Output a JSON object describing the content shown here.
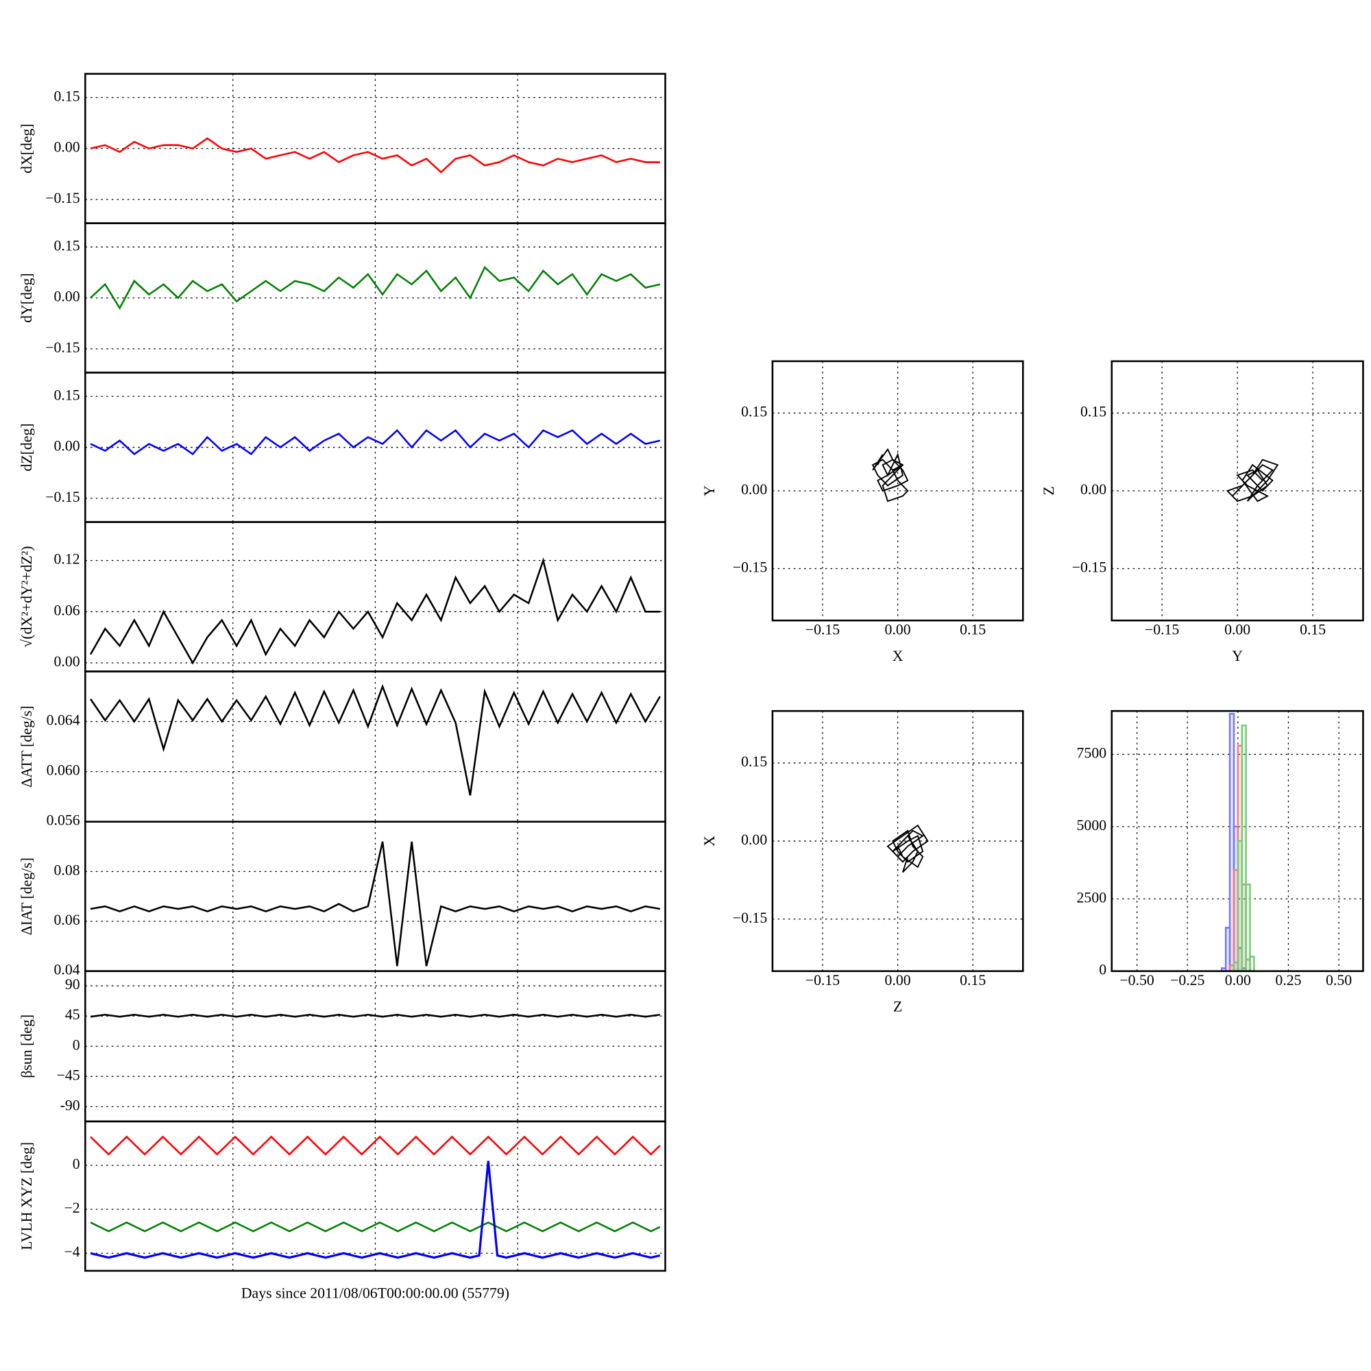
{
  "chart_data": [
    {
      "type": "line",
      "ylabel": "dX[deg]",
      "ylim": [
        -0.22,
        0.22
      ],
      "yticks": [
        {
          "value": -0.15,
          "label": "−0.15"
        },
        {
          "value": 0,
          "label": "0.00"
        },
        0.15
      ],
      "series": [
        {
          "color": "#ff0000",
          "values": [
            0.0,
            0.01,
            -0.01,
            0.02,
            0.0,
            0.01,
            0.01,
            0.0,
            0.03,
            0.0,
            -0.01,
            0.0,
            -0.03,
            -0.02,
            -0.01,
            -0.03,
            -0.01,
            -0.04,
            -0.02,
            -0.01,
            -0.03,
            -0.02,
            -0.05,
            -0.03,
            -0.07,
            -0.03,
            -0.02,
            -0.05,
            -0.04,
            -0.02,
            -0.04,
            -0.05,
            -0.03,
            -0.04,
            -0.03,
            -0.02,
            -0.04,
            -0.03,
            -0.04,
            -0.04
          ]
        }
      ]
    },
    {
      "type": "line",
      "ylabel": "dY[deg]",
      "ylim": [
        -0.22,
        0.22
      ],
      "yticks": [
        {
          "value": -0.15,
          "label": "−0.15"
        },
        {
          "value": 0,
          "label": "0.00"
        },
        0.15
      ],
      "series": [
        {
          "color": "#008000",
          "values": [
            0.0,
            0.04,
            -0.03,
            0.05,
            0.01,
            0.04,
            0.0,
            0.05,
            0.02,
            0.04,
            -0.01,
            0.02,
            0.05,
            0.02,
            0.05,
            0.04,
            0.02,
            0.06,
            0.03,
            0.07,
            0.01,
            0.07,
            0.04,
            0.08,
            0.02,
            0.06,
            0.0,
            0.09,
            0.05,
            0.06,
            0.02,
            0.08,
            0.04,
            0.07,
            0.01,
            0.07,
            0.05,
            0.07,
            0.03,
            0.04
          ]
        }
      ]
    },
    {
      "type": "line",
      "ylabel": "dZ[deg]",
      "ylim": [
        -0.22,
        0.22
      ],
      "yticks": [
        {
          "value": -0.15,
          "label": "−0.15"
        },
        {
          "value": 0,
          "label": "0.00"
        },
        0.15
      ],
      "series": [
        {
          "color": "#0000ff",
          "values": [
            0.01,
            -0.01,
            0.02,
            -0.02,
            0.01,
            -0.01,
            0.01,
            -0.02,
            0.03,
            -0.01,
            0.01,
            -0.02,
            0.03,
            0.0,
            0.03,
            -0.01,
            0.02,
            0.04,
            0.0,
            0.03,
            0.01,
            0.05,
            0.0,
            0.05,
            0.02,
            0.05,
            0.0,
            0.04,
            0.02,
            0.04,
            0.0,
            0.05,
            0.03,
            0.05,
            0.01,
            0.04,
            0.01,
            0.04,
            0.01,
            0.02
          ]
        }
      ]
    },
    {
      "type": "line",
      "ylabel": "√(dX²+dY²+dZ²)",
      "ylim": [
        -0.01,
        0.165
      ],
      "yticks": [
        {
          "value": 0,
          "label": "0.00"
        },
        0.06,
        0.12
      ],
      "series": [
        {
          "color": "#000000",
          "values": [
            0.01,
            0.04,
            0.02,
            0.05,
            0.02,
            0.06,
            0.03,
            0.0,
            0.03,
            0.05,
            0.02,
            0.05,
            0.01,
            0.04,
            0.02,
            0.05,
            0.03,
            0.06,
            0.04,
            0.06,
            0.03,
            0.07,
            0.05,
            0.08,
            0.05,
            0.1,
            0.07,
            0.09,
            0.06,
            0.08,
            0.07,
            0.12,
            0.05,
            0.08,
            0.06,
            0.09,
            0.06,
            0.1,
            0.06,
            0.06
          ]
        }
      ]
    },
    {
      "type": "line",
      "ylabel": "ΔATT [deg/s]",
      "ylim": [
        0.056,
        0.068
      ],
      "yticks": [
        0.056,
        {
          "value": 0.06,
          "label": "0.060"
        },
        0.064
      ],
      "series": [
        {
          "color": "#000000",
          "values": [
            0.0658,
            0.0641,
            0.0657,
            0.064,
            0.0658,
            0.0618,
            0.0657,
            0.0641,
            0.0658,
            0.064,
            0.0657,
            0.0641,
            0.066,
            0.0638,
            0.0663,
            0.0637,
            0.0664,
            0.0639,
            0.0665,
            0.0636,
            0.0668,
            0.0637,
            0.0666,
            0.0638,
            0.0665,
            0.0639,
            0.0581,
            0.0664,
            0.0636,
            0.0663,
            0.0638,
            0.0664,
            0.0639,
            0.0662,
            0.064,
            0.0663,
            0.0639,
            0.0662,
            0.064,
            0.066
          ]
        }
      ]
    },
    {
      "type": "line",
      "ylabel": "ΔIAT [deg/s]",
      "ylim": [
        0.04,
        0.1
      ],
      "yticks": [
        0.04,
        0.06,
        0.08
      ],
      "series": [
        {
          "color": "#000000",
          "values": [
            0.065,
            0.066,
            0.064,
            0.066,
            0.064,
            0.066,
            0.065,
            0.066,
            0.064,
            0.066,
            0.065,
            0.066,
            0.064,
            0.066,
            0.065,
            0.066,
            0.064,
            0.067,
            0.064,
            0.066,
            0.092,
            0.042,
            0.092,
            0.042,
            0.066,
            0.064,
            0.066,
            0.065,
            0.066,
            0.064,
            0.066,
            0.065,
            0.066,
            0.064,
            0.066,
            0.065,
            0.066,
            0.064,
            0.066,
            0.065
          ]
        }
      ]
    },
    {
      "type": "line",
      "ylabel": "βsun [deg]",
      "ylim": [
        -112,
        112
      ],
      "yticks": [
        -90,
        {
          "value": -45,
          "label": "−45"
        },
        0,
        45,
        90
      ],
      "series": [
        {
          "color": "#000000",
          "values": [
            44,
            47,
            44,
            47,
            44,
            47,
            44,
            47,
            44,
            47,
            44,
            47,
            44,
            47,
            44,
            47,
            44,
            47,
            44,
            47,
            44,
            47,
            44,
            47,
            44,
            47,
            44,
            47,
            44,
            47,
            44,
            47,
            44,
            47,
            44,
            47,
            44,
            47,
            44,
            47
          ]
        }
      ]
    },
    {
      "type": "line",
      "ylabel": "LVLH XYZ [deg]",
      "xlabel": "Days since 2011/08/06T00:00:00.00 (55779)",
      "ylim": [
        -4.8,
        2
      ],
      "yticks": [
        {
          "value": -4,
          "label": "−4"
        },
        {
          "value": -2,
          "label": "−2"
        },
        0
      ],
      "series": [
        {
          "color": "#ff0000",
          "values": [
            1.3,
            0.9,
            0.5,
            0.9,
            1.3,
            0.9,
            0.5,
            0.9,
            1.3,
            0.9,
            0.5,
            0.9,
            1.3,
            0.9,
            0.5,
            0.9,
            1.3,
            0.9,
            0.5,
            0.9,
            1.3,
            0.9,
            0.5,
            0.9,
            1.3,
            0.9,
            0.5,
            0.9,
            1.3,
            0.9,
            0.5,
            0.9,
            1.3,
            0.9,
            0.5,
            0.9,
            1.3,
            0.9,
            0.5,
            0.9,
            1.3,
            0.9,
            0.5,
            0.9,
            1.3,
            0.9,
            0.5,
            0.9,
            1.3,
            0.9,
            0.5,
            0.9,
            1.3,
            0.9,
            0.5,
            0.9,
            1.3,
            0.9,
            0.5,
            0.9,
            1.3,
            0.9,
            0.5,
            0.9
          ]
        },
        {
          "color": "#008000",
          "values": [
            -2.6,
            -2.8,
            -3.0,
            -2.8,
            -2.6,
            -2.8,
            -3.0,
            -2.8,
            -2.6,
            -2.8,
            -3.0,
            -2.8,
            -2.6,
            -2.8,
            -3.0,
            -2.8,
            -2.6,
            -2.8,
            -3.0,
            -2.8,
            -2.6,
            -2.8,
            -3.0,
            -2.8,
            -2.6,
            -2.8,
            -3.0,
            -2.8,
            -2.6,
            -2.8,
            -3.0,
            -2.8,
            -2.6,
            -2.8,
            -3.0,
            -2.8,
            -2.6,
            -2.8,
            -3.0,
            -2.8,
            -2.6,
            -2.8,
            -3.0,
            -2.8,
            -2.6,
            -2.8,
            -3.0,
            -2.8,
            -2.6,
            -2.8,
            -3.0,
            -2.8,
            -2.6,
            -2.8,
            -3.0,
            -2.8,
            -2.6,
            -2.8,
            -3.0,
            -2.8,
            -2.6,
            -2.8,
            -3.0,
            -2.8
          ]
        },
        {
          "color": "#0000ff",
          "values": [
            -4.0,
            -4.1,
            -4.2,
            -4.1,
            -4.0,
            -4.1,
            -4.2,
            -4.1,
            -4.0,
            -4.1,
            -4.2,
            -4.1,
            -4.0,
            -4.1,
            -4.2,
            -4.1,
            -4.0,
            -4.1,
            -4.2,
            -4.1,
            -4.0,
            -4.1,
            -4.2,
            -4.1,
            -4.0,
            -4.1,
            -4.2,
            -4.1,
            -4.0,
            -4.1,
            -4.2,
            -4.1,
            -4.0,
            -4.1,
            -4.2,
            -4.1,
            -4.0,
            -4.1,
            -4.2,
            -4.1,
            -4.0,
            -4.1,
            -4.2,
            -4.1,
            0.2,
            -4.1,
            -4.2,
            -4.1,
            -4.0,
            -4.1,
            -4.2,
            -4.1,
            -4.0,
            -4.1,
            -4.2,
            -4.1,
            -4.0,
            -4.1,
            -4.2,
            -4.1,
            -4.0,
            -4.1,
            -4.2,
            -4.1
          ]
        }
      ]
    },
    {
      "type": "scatter",
      "xlabel": "X",
      "ylabel": "Y",
      "color": "#000000",
      "xlim": [
        -0.25,
        0.25
      ],
      "ylim": [
        -0.25,
        0.25
      ],
      "xticks": [
        {
          "value": -0.15,
          "label": "−0.15"
        },
        {
          "value": 0,
          "label": "0.00"
        },
        0.15
      ],
      "yticks": [
        {
          "value": -0.15,
          "label": "−0.15"
        },
        {
          "value": 0,
          "label": "0.00"
        },
        0.15
      ],
      "x": [
        -0.04,
        -0.03,
        -0.05,
        -0.02,
        -0.01,
        0.01,
        -0.02,
        -0.04,
        -0.03,
        0.0,
        0.02,
        0.01,
        -0.01,
        -0.03,
        -0.02,
        0.0,
        0.01,
        -0.02,
        -0.04,
        -0.05,
        -0.03,
        -0.01,
        0.0,
        0.02,
        0.01,
        -0.02,
        -0.03,
        -0.01,
        0.01,
        -0.01
      ],
      "y": [
        0.05,
        0.07,
        0.04,
        0.08,
        0.06,
        0.05,
        0.03,
        0.02,
        0.0,
        0.01,
        0.02,
        0.04,
        0.06,
        0.05,
        0.03,
        0.07,
        0.03,
        0.01,
        0.03,
        0.05,
        0.06,
        0.04,
        0.02,
        0.0,
        -0.01,
        -0.02,
        0.01,
        0.03,
        0.05,
        0.04
      ]
    },
    {
      "type": "scatter",
      "xlabel": "Y",
      "ylabel": "Z",
      "color": "#000000",
      "xlim": [
        -0.25,
        0.25
      ],
      "ylim": [
        -0.25,
        0.25
      ],
      "xticks": [
        {
          "value": -0.15,
          "label": "−0.15"
        },
        {
          "value": 0,
          "label": "0.00"
        },
        0.15
      ],
      "yticks": [
        {
          "value": -0.15,
          "label": "−0.15"
        },
        {
          "value": 0,
          "label": "0.00"
        },
        0.15
      ],
      "x": [
        0.0,
        0.02,
        -0.01,
        0.03,
        0.05,
        0.07,
        0.04,
        0.02,
        0.06,
        0.08,
        0.05,
        0.03,
        0.01,
        -0.02,
        0.0,
        0.03,
        0.06,
        0.04,
        0.02,
        0.05,
        0.07,
        0.03,
        0.01,
        0.04,
        0.06,
        0.02,
        0.0,
        0.03,
        0.05,
        0.04
      ],
      "y": [
        0.0,
        0.02,
        -0.01,
        0.03,
        0.05,
        0.04,
        0.01,
        -0.02,
        0.02,
        0.05,
        0.06,
        0.03,
        0.01,
        0.0,
        -0.02,
        -0.01,
        0.01,
        0.04,
        0.03,
        0.0,
        0.02,
        0.05,
        0.02,
        -0.02,
        -0.01,
        0.01,
        0.03,
        0.04,
        0.02,
        0.01
      ]
    },
    {
      "type": "scatter",
      "xlabel": "Z",
      "ylabel": "X",
      "color": "#000000",
      "xlim": [
        -0.25,
        0.25
      ],
      "ylim": [
        -0.25,
        0.25
      ],
      "xticks": [
        {
          "value": -0.15,
          "label": "−0.15"
        },
        {
          "value": 0,
          "label": "0.00"
        },
        0.15
      ],
      "yticks": [
        {
          "value": -0.15,
          "label": "−0.15"
        },
        {
          "value": 0,
          "label": "0.00"
        },
        0.15
      ],
      "x": [
        -0.01,
        0.01,
        0.03,
        0.05,
        0.02,
        0.0,
        -0.02,
        0.01,
        0.04,
        0.06,
        0.03,
        0.01,
        -0.01,
        0.02,
        0.04,
        0.05,
        0.02,
        0.0,
        -0.01,
        0.02,
        0.03,
        0.05,
        0.04,
        0.01,
        0.0,
        0.02,
        0.04,
        0.03,
        0.01,
        0.02
      ],
      "y": [
        -0.02,
        0.0,
        0.02,
        0.01,
        -0.01,
        -0.03,
        -0.01,
        0.01,
        0.03,
        0.0,
        -0.02,
        -0.04,
        -0.02,
        0.0,
        0.01,
        -0.02,
        -0.04,
        -0.02,
        0.0,
        0.02,
        -0.01,
        -0.03,
        -0.05,
        -0.03,
        -0.01,
        0.01,
        -0.02,
        -0.04,
        -0.06,
        -0.03
      ]
    },
    {
      "type": "histogram",
      "xlim": [
        -0.625,
        0.62
      ],
      "ylim": [
        0,
        9000
      ],
      "xticks": [
        {
          "value": -0.5,
          "label": "−0.50"
        },
        {
          "value": -0.25,
          "label": "−0.25"
        },
        {
          "value": 0,
          "label": "0.00"
        },
        0.25,
        {
          "value": 0.5,
          "label": "0.50"
        }
      ],
      "yticks": [
        0,
        2500,
        5000,
        7500
      ],
      "bins": [
        -0.6,
        -0.08,
        -0.06,
        -0.04,
        -0.02,
        0,
        0.02,
        0.04,
        0.06,
        0.08,
        0.1,
        0.6
      ],
      "series": [
        {
          "color": "#7777ff",
          "values": [
            0,
            100,
            1500,
            8900,
            5000,
            800,
            100,
            0,
            0,
            0,
            0
          ]
        },
        {
          "color": "#ff7777",
          "values": [
            0,
            0,
            0,
            200,
            3500,
            7800,
            3000,
            400,
            0,
            0,
            0
          ]
        },
        {
          "color": "#77cc77",
          "values": [
            0,
            0,
            0,
            0,
            300,
            4500,
            8500,
            3000,
            500,
            0,
            0
          ]
        }
      ]
    }
  ]
}
